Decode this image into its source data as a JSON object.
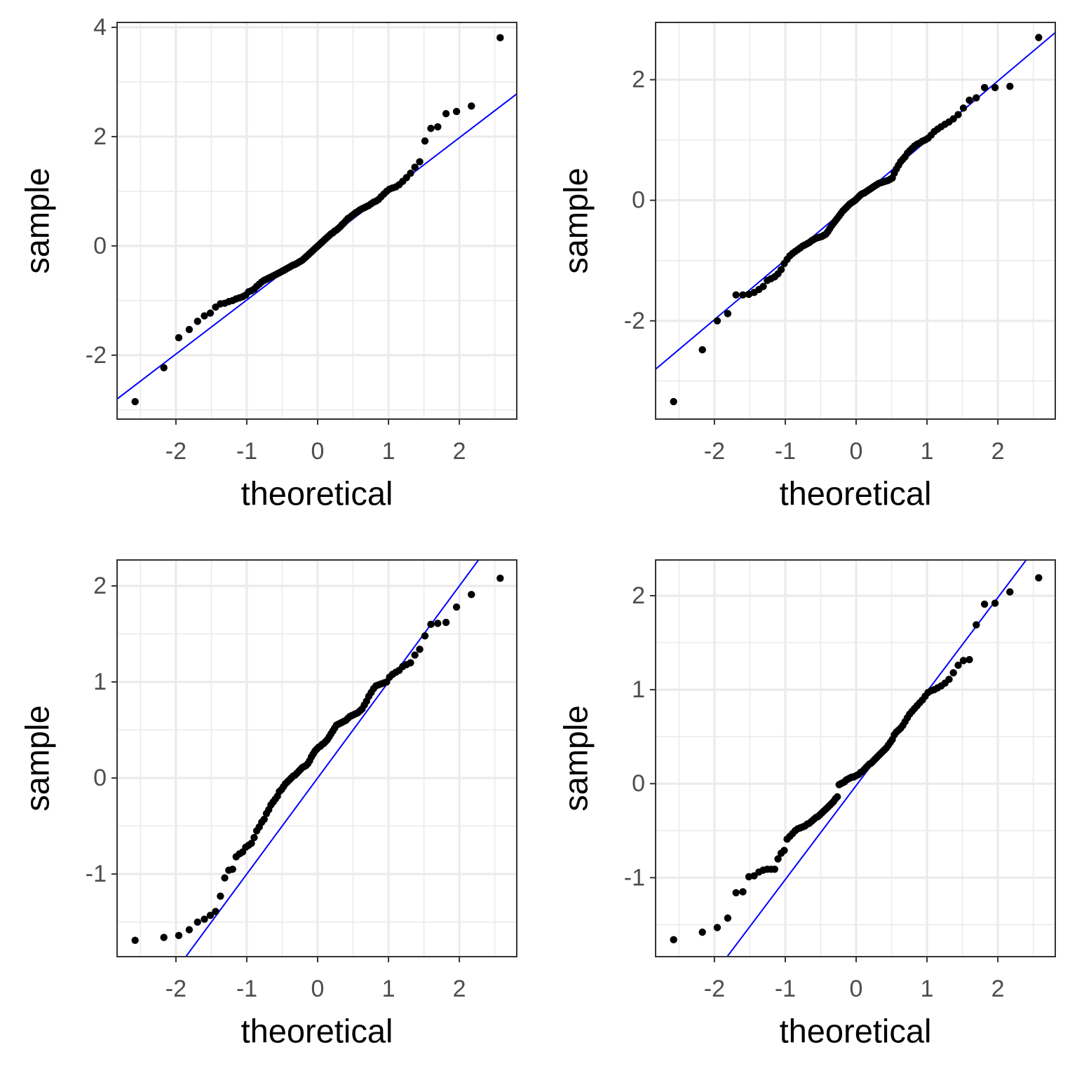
{
  "chart_data": [
    {
      "type": "scatter",
      "x_label": "theoretical",
      "y_label": "sample",
      "grid": true,
      "color": "#000000",
      "x": [
        -2.576,
        -2.17,
        -1.96,
        -1.812,
        -1.695,
        -1.598,
        -1.514,
        -1.44,
        -1.372,
        -1.311,
        -1.254,
        -1.2,
        -1.15,
        -1.103,
        -1.058,
        -1.015,
        -0.974,
        -0.935,
        -0.896,
        -0.86,
        -0.824,
        -0.789,
        -0.755,
        -0.722,
        -0.69,
        -0.659,
        -0.628,
        -0.598,
        -0.568,
        -0.539,
        -0.51,
        -0.482,
        -0.454,
        -0.426,
        -0.399,
        -0.372,
        -0.345,
        -0.319,
        -0.292,
        -0.266,
        -0.24,
        -0.215,
        -0.189,
        -0.164,
        -0.138,
        -0.113,
        -0.088,
        -0.063,
        -0.038,
        -0.013,
        0.013,
        0.038,
        0.063,
        0.088,
        0.113,
        0.138,
        0.164,
        0.189,
        0.215,
        0.24,
        0.266,
        0.292,
        0.319,
        0.345,
        0.372,
        0.399,
        0.426,
        0.454,
        0.482,
        0.51,
        0.539,
        0.568,
        0.598,
        0.628,
        0.659,
        0.69,
        0.722,
        0.755,
        0.789,
        0.824,
        0.86,
        0.896,
        0.935,
        0.974,
        1.015,
        1.058,
        1.103,
        1.15,
        1.2,
        1.254,
        1.311,
        1.372,
        1.44,
        1.514,
        1.598,
        1.695,
        1.812,
        1.96,
        2.17,
        2.576
      ],
      "values": [
        -2.85,
        -2.23,
        -1.68,
        -1.53,
        -1.38,
        -1.28,
        -1.23,
        -1.12,
        -1.06,
        -1.05,
        -1.02,
        -1.0,
        -0.97,
        -0.95,
        -0.93,
        -0.9,
        -0.84,
        -0.82,
        -0.79,
        -0.74,
        -0.7,
        -0.66,
        -0.63,
        -0.61,
        -0.59,
        -0.57,
        -0.55,
        -0.53,
        -0.51,
        -0.49,
        -0.47,
        -0.45,
        -0.43,
        -0.41,
        -0.39,
        -0.37,
        -0.35,
        -0.34,
        -0.32,
        -0.3,
        -0.28,
        -0.26,
        -0.23,
        -0.2,
        -0.17,
        -0.14,
        -0.11,
        -0.08,
        -0.05,
        -0.02,
        0.01,
        0.04,
        0.07,
        0.1,
        0.13,
        0.16,
        0.19,
        0.22,
        0.24,
        0.27,
        0.29,
        0.32,
        0.35,
        0.39,
        0.42,
        0.46,
        0.5,
        0.52,
        0.55,
        0.58,
        0.61,
        0.63,
        0.66,
        0.68,
        0.7,
        0.72,
        0.74,
        0.77,
        0.8,
        0.82,
        0.85,
        0.9,
        0.95,
        1.0,
        1.04,
        1.06,
        1.08,
        1.12,
        1.18,
        1.25,
        1.33,
        1.44,
        1.54,
        1.92,
        2.15,
        2.18,
        2.42,
        2.46,
        2.56,
        3.81
      ],
      "reference_line": {
        "slope": 0.99,
        "intercept": 0.0,
        "color": "#0000ff"
      },
      "xlim": [
        -2.83,
        2.81
      ],
      "ylim": [
        -3.17,
        4.09
      ],
      "xticks": [
        -2,
        -1,
        0,
        1,
        2
      ],
      "yticks": [
        -2,
        0,
        2,
        4
      ]
    },
    {
      "type": "scatter",
      "x_label": "theoretical",
      "y_label": "sample",
      "grid": true,
      "color": "#000000",
      "x": [
        -2.576,
        -2.17,
        -1.96,
        -1.812,
        -1.695,
        -1.598,
        -1.514,
        -1.44,
        -1.372,
        -1.311,
        -1.254,
        -1.2,
        -1.15,
        -1.103,
        -1.058,
        -1.015,
        -0.974,
        -0.935,
        -0.896,
        -0.86,
        -0.824,
        -0.789,
        -0.755,
        -0.722,
        -0.69,
        -0.659,
        -0.628,
        -0.598,
        -0.568,
        -0.539,
        -0.51,
        -0.482,
        -0.454,
        -0.426,
        -0.399,
        -0.372,
        -0.345,
        -0.319,
        -0.292,
        -0.266,
        -0.24,
        -0.215,
        -0.189,
        -0.164,
        -0.138,
        -0.113,
        -0.088,
        -0.063,
        -0.038,
        -0.013,
        0.013,
        0.038,
        0.063,
        0.088,
        0.113,
        0.138,
        0.164,
        0.189,
        0.215,
        0.24,
        0.266,
        0.292,
        0.319,
        0.345,
        0.372,
        0.399,
        0.426,
        0.454,
        0.482,
        0.51,
        0.539,
        0.568,
        0.598,
        0.628,
        0.659,
        0.69,
        0.722,
        0.755,
        0.789,
        0.824,
        0.86,
        0.896,
        0.935,
        0.974,
        1.015,
        1.058,
        1.103,
        1.15,
        1.2,
        1.254,
        1.311,
        1.372,
        1.44,
        1.514,
        1.598,
        1.695,
        1.812,
        1.96,
        2.17,
        2.576
      ],
      "values": [
        -3.34,
        -2.48,
        -2.0,
        -1.88,
        -1.57,
        -1.57,
        -1.56,
        -1.53,
        -1.48,
        -1.43,
        -1.33,
        -1.3,
        -1.27,
        -1.22,
        -1.15,
        -1.05,
        -0.98,
        -0.92,
        -0.88,
        -0.85,
        -0.82,
        -0.79,
        -0.76,
        -0.74,
        -0.72,
        -0.7,
        -0.67,
        -0.65,
        -0.63,
        -0.62,
        -0.61,
        -0.6,
        -0.58,
        -0.56,
        -0.52,
        -0.47,
        -0.42,
        -0.38,
        -0.34,
        -0.3,
        -0.26,
        -0.22,
        -0.18,
        -0.15,
        -0.12,
        -0.09,
        -0.06,
        -0.04,
        -0.02,
        0.0,
        0.03,
        0.06,
        0.09,
        0.11,
        0.12,
        0.14,
        0.16,
        0.18,
        0.2,
        0.22,
        0.24,
        0.26,
        0.28,
        0.29,
        0.3,
        0.31,
        0.32,
        0.33,
        0.35,
        0.37,
        0.45,
        0.52,
        0.58,
        0.64,
        0.68,
        0.72,
        0.78,
        0.82,
        0.86,
        0.9,
        0.93,
        0.95,
        0.98,
        1.0,
        1.03,
        1.08,
        1.14,
        1.18,
        1.22,
        1.26,
        1.3,
        1.35,
        1.42,
        1.53,
        1.66,
        1.7,
        1.87,
        1.87,
        1.89,
        2.7
      ],
      "reference_line": {
        "slope": 0.99,
        "intercept": 0.0,
        "color": "#0000ff"
      },
      "xlim": [
        -2.83,
        2.81
      ],
      "ylim": [
        -3.63,
        2.95
      ],
      "xticks": [
        -2,
        -1,
        0,
        1,
        2
      ],
      "yticks": [
        -2,
        0,
        2
      ]
    },
    {
      "type": "scatter",
      "x_label": "theoretical",
      "y_label": "sample",
      "grid": true,
      "color": "#000000",
      "x": [
        -2.576,
        -2.17,
        -1.96,
        -1.812,
        -1.695,
        -1.598,
        -1.514,
        -1.44,
        -1.372,
        -1.311,
        -1.254,
        -1.2,
        -1.15,
        -1.103,
        -1.058,
        -1.015,
        -0.974,
        -0.935,
        -0.896,
        -0.86,
        -0.824,
        -0.789,
        -0.755,
        -0.722,
        -0.69,
        -0.659,
        -0.628,
        -0.598,
        -0.568,
        -0.539,
        -0.51,
        -0.482,
        -0.454,
        -0.426,
        -0.399,
        -0.372,
        -0.345,
        -0.319,
        -0.292,
        -0.266,
        -0.24,
        -0.215,
        -0.189,
        -0.164,
        -0.138,
        -0.113,
        -0.088,
        -0.063,
        -0.038,
        -0.013,
        0.013,
        0.038,
        0.063,
        0.088,
        0.113,
        0.138,
        0.164,
        0.189,
        0.215,
        0.24,
        0.266,
        0.292,
        0.319,
        0.345,
        0.372,
        0.399,
        0.426,
        0.454,
        0.482,
        0.51,
        0.539,
        0.568,
        0.598,
        0.628,
        0.659,
        0.69,
        0.722,
        0.755,
        0.789,
        0.824,
        0.86,
        0.896,
        0.935,
        0.974,
        1.015,
        1.058,
        1.103,
        1.15,
        1.2,
        1.254,
        1.311,
        1.372,
        1.44,
        1.514,
        1.598,
        1.695,
        1.812,
        1.96,
        2.17,
        2.576
      ],
      "values": [
        -1.69,
        -1.66,
        -1.64,
        -1.58,
        -1.5,
        -1.47,
        -1.43,
        -1.39,
        -1.23,
        -1.04,
        -0.96,
        -0.95,
        -0.82,
        -0.79,
        -0.77,
        -0.72,
        -0.7,
        -0.68,
        -0.62,
        -0.55,
        -0.51,
        -0.46,
        -0.43,
        -0.37,
        -0.33,
        -0.28,
        -0.25,
        -0.22,
        -0.19,
        -0.14,
        -0.12,
        -0.09,
        -0.06,
        -0.04,
        -0.02,
        0.0,
        0.02,
        0.03,
        0.05,
        0.07,
        0.09,
        0.11,
        0.12,
        0.13,
        0.15,
        0.18,
        0.22,
        0.25,
        0.28,
        0.3,
        0.32,
        0.33,
        0.35,
        0.36,
        0.38,
        0.4,
        0.43,
        0.46,
        0.49,
        0.52,
        0.55,
        0.56,
        0.57,
        0.58,
        0.59,
        0.6,
        0.62,
        0.64,
        0.65,
        0.66,
        0.67,
        0.68,
        0.7,
        0.72,
        0.76,
        0.8,
        0.85,
        0.89,
        0.93,
        0.96,
        0.97,
        0.98,
        0.99,
        1.0,
        1.05,
        1.08,
        1.1,
        1.12,
        1.16,
        1.18,
        1.2,
        1.28,
        1.34,
        1.48,
        1.6,
        1.61,
        1.62,
        1.78,
        1.91,
        2.08
      ],
      "reference_line": {
        "slope": 1.0,
        "intercept": 0.0,
        "color": "#0000ff"
      },
      "xlim": [
        -2.83,
        2.81
      ],
      "ylim": [
        -1.86,
        2.27
      ],
      "xticks": [
        -2,
        -1,
        0,
        1,
        2
      ],
      "yticks": [
        -1,
        0,
        1,
        2
      ]
    },
    {
      "type": "scatter",
      "x_label": "theoretical",
      "y_label": "sample",
      "grid": true,
      "color": "#000000",
      "x": [
        -2.576,
        -2.17,
        -1.96,
        -1.812,
        -1.695,
        -1.598,
        -1.514,
        -1.44,
        -1.372,
        -1.311,
        -1.254,
        -1.2,
        -1.15,
        -1.103,
        -1.058,
        -1.015,
        -0.974,
        -0.935,
        -0.896,
        -0.86,
        -0.824,
        -0.789,
        -0.755,
        -0.722,
        -0.69,
        -0.659,
        -0.628,
        -0.598,
        -0.568,
        -0.539,
        -0.51,
        -0.482,
        -0.454,
        -0.426,
        -0.399,
        -0.372,
        -0.345,
        -0.319,
        -0.292,
        -0.266,
        -0.24,
        -0.215,
        -0.189,
        -0.164,
        -0.138,
        -0.113,
        -0.088,
        -0.063,
        -0.038,
        -0.013,
        0.013,
        0.038,
        0.063,
        0.088,
        0.113,
        0.138,
        0.164,
        0.189,
        0.215,
        0.24,
        0.266,
        0.292,
        0.319,
        0.345,
        0.372,
        0.399,
        0.426,
        0.454,
        0.482,
        0.51,
        0.539,
        0.568,
        0.598,
        0.628,
        0.659,
        0.69,
        0.722,
        0.755,
        0.789,
        0.824,
        0.86,
        0.896,
        0.935,
        0.974,
        1.015,
        1.058,
        1.103,
        1.15,
        1.2,
        1.254,
        1.311,
        1.372,
        1.44,
        1.514,
        1.598,
        1.695,
        1.812,
        1.96,
        2.17,
        2.576
      ],
      "values": [
        -1.66,
        -1.58,
        -1.53,
        -1.43,
        -1.16,
        -1.15,
        -0.99,
        -0.98,
        -0.94,
        -0.92,
        -0.91,
        -0.91,
        -0.91,
        -0.8,
        -0.74,
        -0.71,
        -0.59,
        -0.56,
        -0.53,
        -0.5,
        -0.48,
        -0.47,
        -0.46,
        -0.45,
        -0.43,
        -0.42,
        -0.4,
        -0.38,
        -0.36,
        -0.35,
        -0.33,
        -0.31,
        -0.29,
        -0.27,
        -0.25,
        -0.23,
        -0.21,
        -0.19,
        -0.16,
        -0.14,
        -0.01,
        0.0,
        0.01,
        0.02,
        0.04,
        0.05,
        0.06,
        0.07,
        0.07,
        0.08,
        0.09,
        0.1,
        0.12,
        0.13,
        0.15,
        0.17,
        0.19,
        0.21,
        0.22,
        0.24,
        0.26,
        0.28,
        0.3,
        0.32,
        0.34,
        0.36,
        0.38,
        0.41,
        0.44,
        0.47,
        0.52,
        0.55,
        0.57,
        0.59,
        0.62,
        0.66,
        0.7,
        0.74,
        0.77,
        0.8,
        0.83,
        0.86,
        0.89,
        0.93,
        0.97,
        0.99,
        1.0,
        1.02,
        1.04,
        1.07,
        1.11,
        1.18,
        1.26,
        1.31,
        1.32,
        1.69,
        1.91,
        1.92,
        2.04,
        2.19
      ],
      "reference_line": {
        "slope": 1.0,
        "intercept": -0.02,
        "color": "#0000ff"
      },
      "xlim": [
        -2.83,
        2.81
      ],
      "ylim": [
        -1.84,
        2.38
      ],
      "xticks": [
        -2,
        -1,
        0,
        1,
        2
      ],
      "yticks": [
        -1,
        0,
        1,
        2
      ]
    }
  ]
}
